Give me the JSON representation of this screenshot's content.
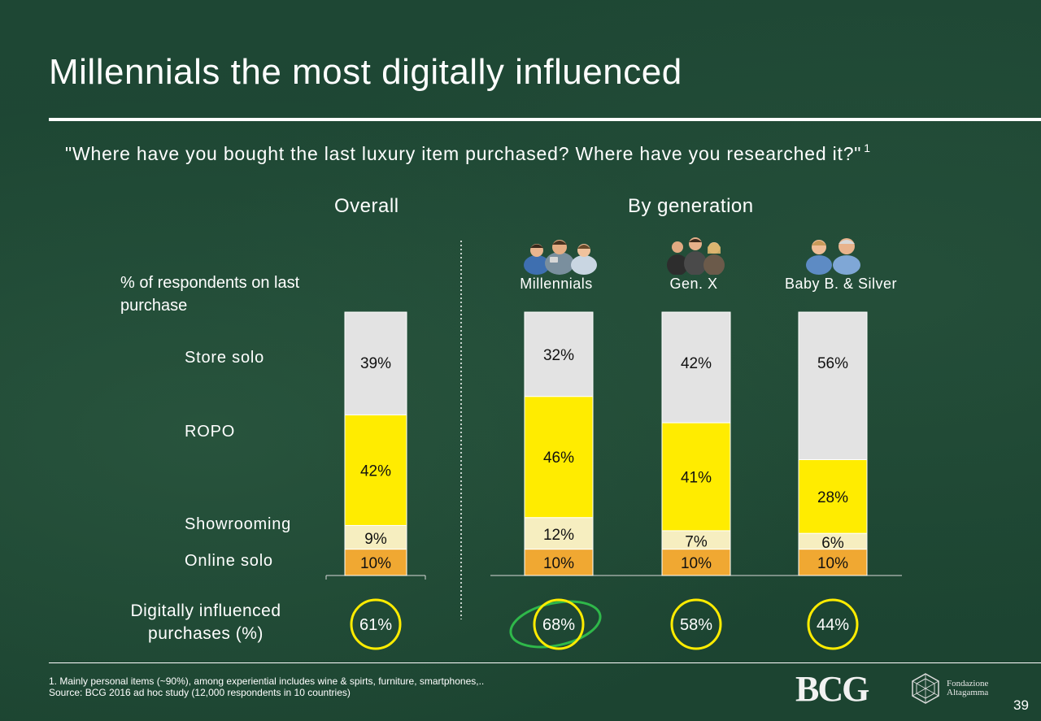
{
  "title": "Millennials the most digitally influenced",
  "subtitle": "\"Where have you bought the last luxury item purchased? Where have you researched it?\"",
  "subtitle_footnote_ref": "1",
  "overall_heading": "Overall",
  "generation_heading": "By generation",
  "respondents_label": "% of respondents on last purchase",
  "categories": {
    "store_solo": "Store solo",
    "ropo": "ROPO",
    "showrooming": "Showrooming",
    "online_solo": "Online solo"
  },
  "digital_label": "Digitally influenced purchases (%)",
  "icons": [
    "millennials-group-icon",
    "gen-x-group-icon",
    "baby-boomers-group-icon",
    "bcg-logo",
    "fondazione-altagamma-logo"
  ],
  "colors": {
    "store_solo": "#e3e3e3",
    "ropo": "#ffec00",
    "showrooming": "#f6eec0",
    "online_solo": "#f0a832",
    "circle": "#ffec00",
    "highlight": "#2fb84a"
  },
  "chart_data": {
    "type": "bar",
    "stacked": true,
    "percent_scale": true,
    "ylim": [
      0,
      100
    ],
    "categories": [
      "Overall",
      "Millennials",
      "Gen. X",
      "Baby B. & Silver"
    ],
    "series": [
      {
        "name": "Online solo",
        "values": [
          10,
          10,
          10,
          10
        ],
        "labels": [
          "10%",
          "10%",
          "10%",
          "10%"
        ]
      },
      {
        "name": "Showrooming",
        "values": [
          9,
          12,
          7,
          6
        ],
        "labels": [
          "9%",
          "12%",
          "7%",
          "6%"
        ]
      },
      {
        "name": "ROPO",
        "values": [
          42,
          46,
          41,
          28
        ],
        "labels": [
          "42%",
          "46%",
          "41%",
          "28%"
        ]
      },
      {
        "name": "Store solo",
        "values": [
          39,
          32,
          42,
          56
        ],
        "labels": [
          "39%",
          "32%",
          "42%",
          "56%"
        ]
      }
    ],
    "digitally_influenced": {
      "values": [
        61,
        68,
        58,
        44
      ],
      "labels": [
        "61%",
        "68%",
        "58%",
        "44%"
      ],
      "highlighted": "Millennials"
    }
  },
  "footnote": "1. Mainly personal items (~90%), among experiential includes wine & spirts, furniture, smartphones,..",
  "source": "Source: BCG 2016 ad hoc study (12,000 respondents in 10 countries)",
  "logos": {
    "bcg": "BCG",
    "fondazione_line1": "Fondazione",
    "fondazione_line2": "Altagamma"
  },
  "page_number": "39"
}
